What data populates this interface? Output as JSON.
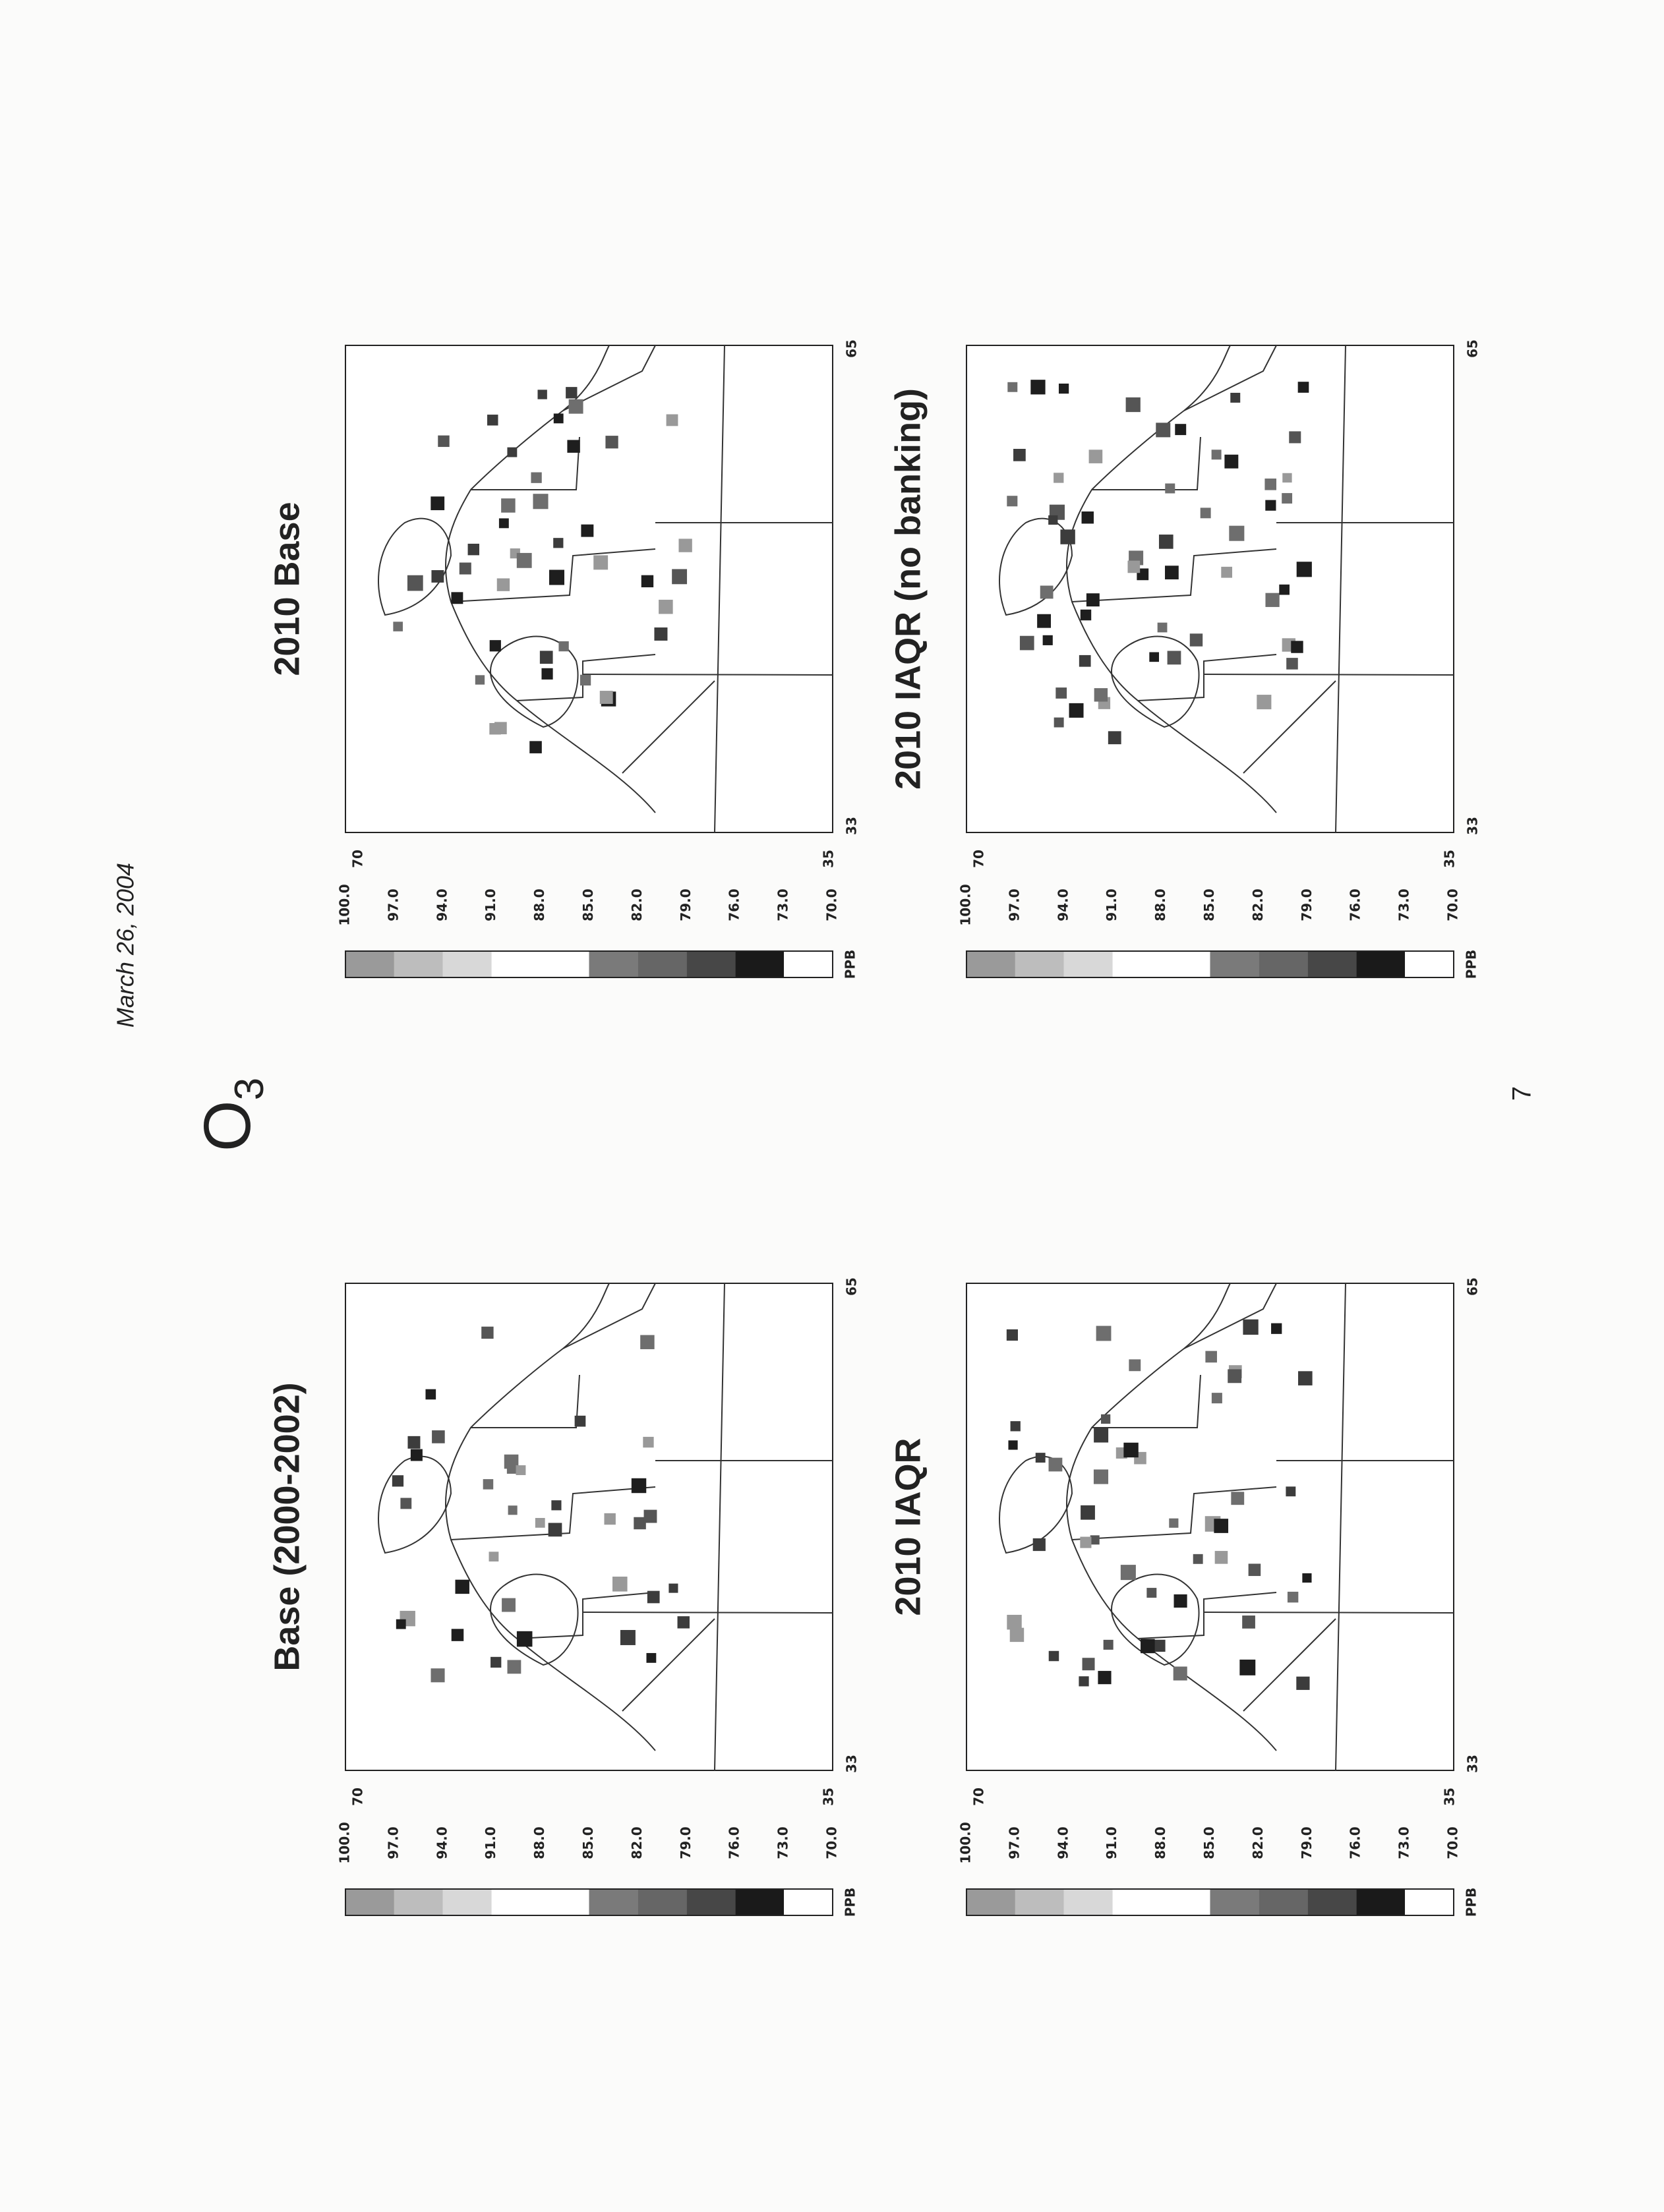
{
  "header": {
    "date": "March 26, 2004"
  },
  "title": {
    "text": "O",
    "subscript": "3"
  },
  "panels": [
    {
      "title": "Base (2000-2002)",
      "colorbar": {
        "labels": [
          "100.0",
          "97.0",
          "94.0",
          "91.0",
          "88.0",
          "85.0",
          "82.0",
          "79.0",
          "76.0",
          "73.0",
          "70.0"
        ],
        "unit": "PPB"
      },
      "axis_labels": {
        "top_left": "70",
        "bottom_left": "35",
        "bottom_start": "33",
        "bottom_end": "65"
      }
    },
    {
      "title": "2010 Base",
      "colorbar": {
        "labels": [
          "100.0",
          "97.0",
          "94.0",
          "91.0",
          "88.0",
          "85.0",
          "82.0",
          "79.0",
          "76.0",
          "73.0",
          "70.0"
        ],
        "unit": "PPB"
      },
      "axis_labels": {
        "top_left": "70",
        "bottom_left": "35",
        "bottom_start": "33",
        "bottom_end": "65"
      }
    },
    {
      "title": "2010 IAQR",
      "colorbar": {
        "labels": [
          "100.0",
          "97.0",
          "94.0",
          "91.0",
          "88.0",
          "85.0",
          "82.0",
          "79.0",
          "76.0",
          "73.0",
          "70.0"
        ],
        "unit": "PPB"
      },
      "axis_labels": {
        "top_left": "70",
        "bottom_left": "35",
        "bottom_start": "33",
        "bottom_end": "65"
      }
    },
    {
      "title": "2010 IAQR (no banking)",
      "colorbar": {
        "labels": [
          "100.0",
          "97.0",
          "94.0",
          "91.0",
          "88.0",
          "85.0",
          "82.0",
          "79.0",
          "76.0",
          "73.0",
          "70.0"
        ],
        "unit": "PPB"
      },
      "axis_labels": {
        "top_left": "70",
        "bottom_left": "35",
        "bottom_start": "33",
        "bottom_end": "65"
      }
    }
  ],
  "footer": {
    "page_number": "7"
  }
}
